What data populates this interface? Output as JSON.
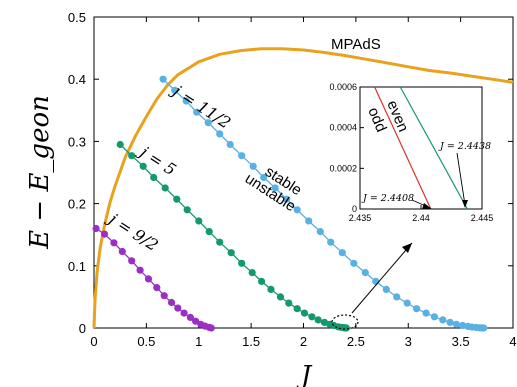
{
  "chart_data": [
    {
      "type": "line",
      "title": "",
      "xlabel": "J",
      "ylabel": "E − E_geon",
      "xlim": [
        0,
        4
      ],
      "ylim": [
        0,
        0.5
      ],
      "xticks": [
        "0",
        "0.5",
        "1",
        "1.5",
        "2",
        "2.5",
        "3",
        "3.5",
        "4"
      ],
      "yticks": [
        "0",
        "0.1",
        "0.2",
        "0.3",
        "0.4",
        "0.5"
      ],
      "grid": false,
      "colors": {
        "mpads": "#e8a21e",
        "j9_2": "#9b2ec5",
        "j5": "#14996b",
        "j11_2": "#58b0e3"
      },
      "series": [
        {
          "name": "MPAdS",
          "x": [
            0,
            0.01,
            0.03,
            0.06,
            0.1,
            0.15,
            0.2,
            0.3,
            0.4,
            0.5,
            0.6,
            0.7,
            0.8,
            1.0,
            1.2,
            1.4,
            1.6,
            1.8,
            2.0,
            2.2,
            2.4,
            2.6,
            2.8,
            3.0,
            3.2,
            3.4,
            3.6,
            3.8,
            4.0
          ],
          "y": [
            0,
            0.045,
            0.09,
            0.13,
            0.165,
            0.2,
            0.228,
            0.275,
            0.31,
            0.34,
            0.368,
            0.39,
            0.407,
            0.428,
            0.44,
            0.446,
            0.449,
            0.449,
            0.447,
            0.443,
            0.438,
            0.432,
            0.426,
            0.42,
            0.414,
            0.41,
            0.405,
            0.4,
            0.395
          ]
        },
        {
          "name": "j = 9/2",
          "x": [
            0.02,
            0.1,
            0.19,
            0.27,
            0.36,
            0.44,
            0.52,
            0.6,
            0.67,
            0.74,
            0.8,
            0.86,
            0.92,
            0.97,
            1.02,
            1.06,
            1.1,
            1.12
          ],
          "y": [
            0.16,
            0.151,
            0.137,
            0.123,
            0.108,
            0.093,
            0.079,
            0.065,
            0.052,
            0.041,
            0.032,
            0.024,
            0.017,
            0.011,
            0.006,
            0.003,
            0.001,
            0.0
          ]
        },
        {
          "name": "j = 5",
          "x": [
            0.25,
            0.36,
            0.47,
            0.57,
            0.68,
            0.79,
            0.89,
            1.0,
            1.1,
            1.2,
            1.31,
            1.41,
            1.51,
            1.6,
            1.69,
            1.78,
            1.86,
            1.94,
            2.01,
            2.08,
            2.14,
            2.2,
            2.25,
            2.29,
            2.33,
            2.36,
            2.38,
            2.39,
            2.4,
            2.405,
            2.41
          ],
          "y": [
            0.295,
            0.277,
            0.26,
            0.242,
            0.225,
            0.207,
            0.19,
            0.172,
            0.155,
            0.138,
            0.121,
            0.104,
            0.089,
            0.075,
            0.062,
            0.05,
            0.04,
            0.031,
            0.024,
            0.018,
            0.013,
            0.009,
            0.006,
            0.004,
            0.002,
            0.0012,
            0.0006,
            0.0003,
            0.0001,
            5e-05,
            0.0
          ]
        },
        {
          "name": "j = 11/2",
          "x": [
            0.66,
            0.77,
            0.88,
            0.98,
            1.09,
            1.2,
            1.3,
            1.41,
            1.52,
            1.62,
            1.73,
            1.84,
            1.94,
            2.05,
            2.16,
            2.26,
            2.37,
            2.48,
            2.59,
            2.69,
            2.79,
            2.89,
            2.99,
            3.08,
            3.17,
            3.25,
            3.33,
            3.4,
            3.46,
            3.52,
            3.57,
            3.61,
            3.65,
            3.68,
            3.7,
            3.72
          ],
          "y": [
            0.4,
            0.382,
            0.365,
            0.347,
            0.33,
            0.312,
            0.295,
            0.277,
            0.26,
            0.242,
            0.225,
            0.207,
            0.19,
            0.172,
            0.155,
            0.138,
            0.121,
            0.104,
            0.089,
            0.075,
            0.062,
            0.05,
            0.04,
            0.031,
            0.024,
            0.018,
            0.013,
            0.009,
            0.006,
            0.004,
            0.0025,
            0.0015,
            0.0008,
            0.0004,
            0.0001,
            0.0
          ]
        }
      ],
      "annotations": [
        "MPAdS",
        "stable",
        "unstable",
        "j = 11/2",
        "j = 5",
        "j = 9/2"
      ],
      "labels": {
        "mpads": "MPAdS",
        "stable": "stable",
        "unstable": "unstable",
        "j9_2": "j = 9/2",
        "j5": "j = 5",
        "j11_2": "j = 11/2"
      }
    },
    {
      "type": "line",
      "title": "",
      "xlabel": "",
      "ylabel": "",
      "xlim": [
        2.435,
        2.445
      ],
      "ylim": [
        0,
        0.0006
      ],
      "xticks": [
        "2.435",
        "2.44",
        "2.445"
      ],
      "yticks": [
        "0",
        "0.0002",
        "0.0004",
        "0.0006"
      ],
      "series": [
        {
          "name": "odd",
          "x": [
            2.4362,
            2.4408
          ],
          "y": [
            0.0006,
            0.0
          ]
        },
        {
          "name": "even",
          "x": [
            2.4383,
            2.4438
          ],
          "y": [
            0.0006,
            0.0
          ]
        }
      ],
      "annotations": [
        "J = 2.4438",
        "J = 2.4408"
      ],
      "labels": {
        "odd": "odd",
        "even": "even",
        "marker_even": "J = 2.4438",
        "marker_odd": "J = 2.4408"
      }
    }
  ]
}
